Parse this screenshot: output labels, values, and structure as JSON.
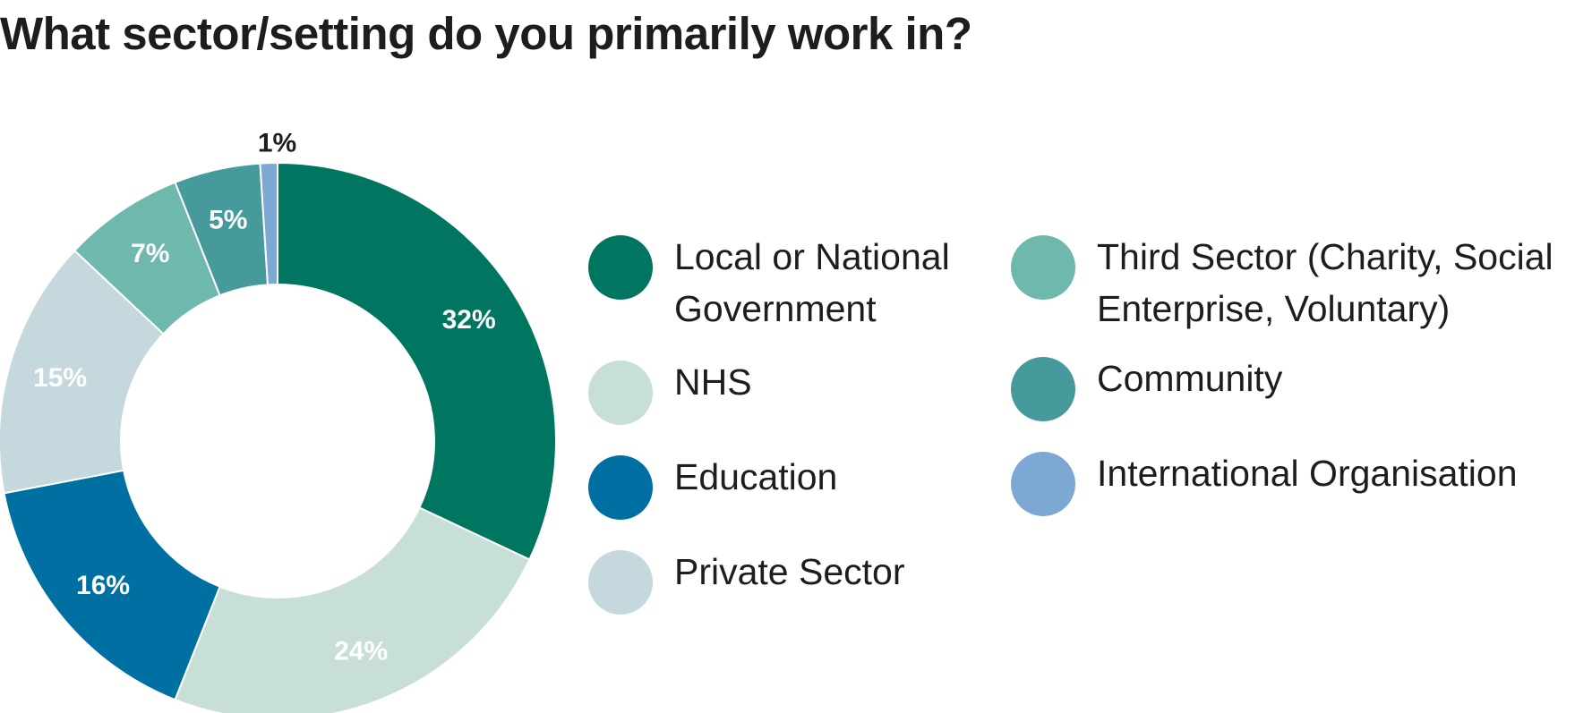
{
  "title": "What sector/setting do you primarily work in?",
  "chart_data": {
    "type": "pie",
    "variant": "donut",
    "title": "What sector/setting do you primarily work in?",
    "slices": [
      {
        "label": "Local or National Government",
        "value": 32,
        "display": "32%",
        "color": "#007560"
      },
      {
        "label": "NHS",
        "value": 24,
        "display": "24%",
        "color": "#c7dfd6"
      },
      {
        "label": "Education",
        "value": 16,
        "display": "16%",
        "color": "#0070a2"
      },
      {
        "label": "Private Sector",
        "value": 15,
        "display": "15%",
        "color": "#c5d8de"
      },
      {
        "label": "Third Sector (Charity, Social Enterprise, Voluntary)",
        "value": 7,
        "display": "7%",
        "color": "#6fb8ae"
      },
      {
        "label": "Community",
        "value": 5,
        "display": "5%",
        "color": "#479a9c"
      },
      {
        "label": "International Organisation",
        "value": 1,
        "display": "1%",
        "color": "#7ca8d3"
      }
    ],
    "legend_placement": "right"
  },
  "legend": {
    "column_1": [
      {
        "lines": [
          "Local or National",
          "Government"
        ],
        "color": "#007560"
      },
      {
        "lines": [
          "NHS"
        ],
        "color": "#c7dfd6"
      },
      {
        "lines": [
          "Education"
        ],
        "color": "#0070a2"
      },
      {
        "lines": [
          "Private Sector"
        ],
        "color": "#c5d8de"
      }
    ],
    "column_2": [
      {
        "lines": [
          "Third Sector (Charity, Social",
          "Enterprise, Voluntary)"
        ],
        "color": "#6fb8ae"
      },
      {
        "lines": [
          "Community"
        ],
        "color": "#479a9c"
      },
      {
        "lines": [
          "International Organisation"
        ],
        "color": "#7ca8d3"
      }
    ]
  }
}
